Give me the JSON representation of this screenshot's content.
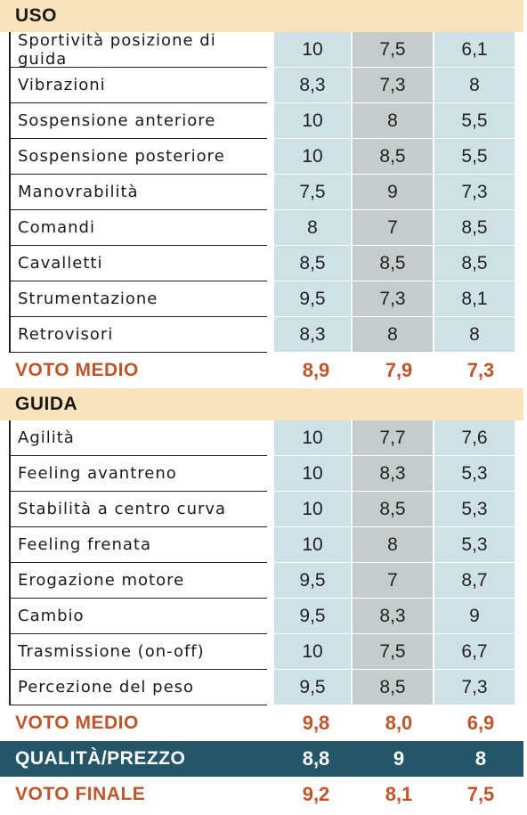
{
  "uso": {
    "title": "USO",
    "rows": [
      {
        "label": "Sportività posizione di guida",
        "values": [
          "10",
          "7,5",
          "6,1"
        ]
      },
      {
        "label": "Vibrazioni",
        "values": [
          "8,3",
          "7,3",
          "8"
        ]
      },
      {
        "label": "Sospensione anteriore",
        "values": [
          "10",
          "8",
          "5,5"
        ]
      },
      {
        "label": "Sospensione posteriore",
        "values": [
          "10",
          "8,5",
          "5,5"
        ]
      },
      {
        "label": "Manovrabilità",
        "values": [
          "7,5",
          "9",
          "7,3"
        ]
      },
      {
        "label": "Comandi",
        "values": [
          "8",
          "7",
          "8,5"
        ]
      },
      {
        "label": "Cavalletti",
        "values": [
          "8,5",
          "8,5",
          "8,5"
        ]
      },
      {
        "label": "Strumentazione",
        "values": [
          "9,5",
          "7,3",
          "8,1"
        ]
      },
      {
        "label": "Retrovisori",
        "values": [
          "8,3",
          "8",
          "8"
        ]
      }
    ],
    "average": {
      "label": "VOTO MEDIO",
      "values": [
        "8,9",
        "7,9",
        "7,3"
      ]
    }
  },
  "guida": {
    "title": "GUIDA",
    "rows": [
      {
        "label": "Agilità",
        "values": [
          "10",
          "7,7",
          "7,6"
        ]
      },
      {
        "label": "Feeling avantreno",
        "values": [
          "10",
          "8,3",
          "5,3"
        ]
      },
      {
        "label": "Stabilità a centro curva",
        "values": [
          "10",
          "8,5",
          "5,3"
        ]
      },
      {
        "label": "Feeling frenata",
        "values": [
          "10",
          "8",
          "5,3"
        ]
      },
      {
        "label": "Erogazione motore",
        "values": [
          "9,5",
          "7",
          "8,7"
        ]
      },
      {
        "label": "Cambio",
        "values": [
          "9,5",
          "8,3",
          "9"
        ]
      },
      {
        "label": "Trasmissione (on-off)",
        "values": [
          "10",
          "7,5",
          "6,7"
        ]
      },
      {
        "label": "Percezione del peso",
        "values": [
          "9,5",
          "8,5",
          "7,3"
        ]
      }
    ],
    "average": {
      "label": "VOTO MEDIO",
      "values": [
        "9,8",
        "8,0",
        "6,9"
      ]
    }
  },
  "qualita_prezzo": {
    "label": "QUALITÀ/PREZZO",
    "values": [
      "8,8",
      "9",
      "8"
    ]
  },
  "voto_finale": {
    "label": "VOTO FINALE",
    "values": [
      "9,2",
      "8,1",
      "7,5"
    ]
  },
  "colors": {
    "section_header_bg": "#f8e3bd",
    "column_blue": "#cde1e7",
    "column_grey": "#c4cdcb",
    "accent_orange": "#c0552b",
    "qp_band": "#235669"
  }
}
